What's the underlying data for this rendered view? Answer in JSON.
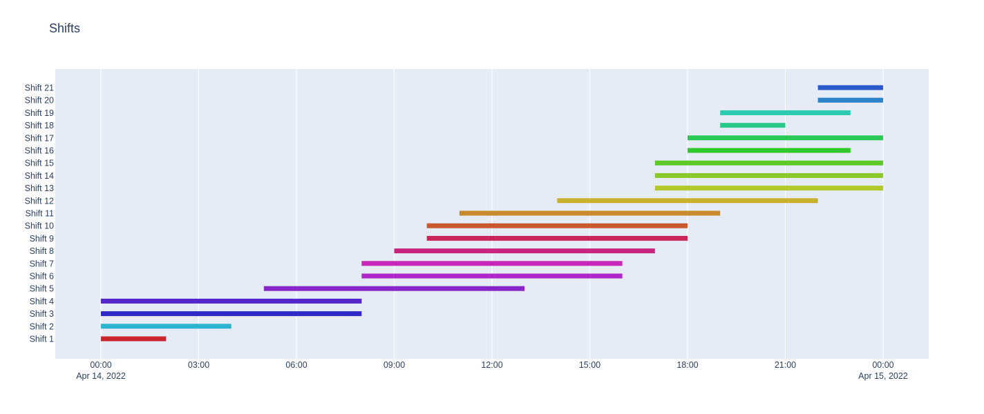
{
  "chart_data": {
    "type": "bar",
    "orientation": "horizontal-timeline",
    "title": "Shifts",
    "xlabel": "",
    "ylabel": "",
    "grid": true,
    "x_ticks": [
      {
        "time": "2022-04-14 00:00",
        "label": "00:00",
        "sublabel": "Apr 14, 2022"
      },
      {
        "time": "2022-04-14 03:00",
        "label": "03:00",
        "sublabel": ""
      },
      {
        "time": "2022-04-14 06:00",
        "label": "06:00",
        "sublabel": ""
      },
      {
        "time": "2022-04-14 09:00",
        "label": "09:00",
        "sublabel": ""
      },
      {
        "time": "2022-04-14 12:00",
        "label": "12:00",
        "sublabel": ""
      },
      {
        "time": "2022-04-14 15:00",
        "label": "15:00",
        "sublabel": ""
      },
      {
        "time": "2022-04-14 18:00",
        "label": "18:00",
        "sublabel": ""
      },
      {
        "time": "2022-04-14 21:00",
        "label": "21:00",
        "sublabel": ""
      },
      {
        "time": "2022-04-15 00:00",
        "label": "00:00",
        "sublabel": "Apr 15, 2022"
      }
    ],
    "xlim": [
      "2022-04-13 22:36",
      "2022-04-15 01:24"
    ],
    "series": [
      {
        "name": "Shift 1",
        "start": "2022-04-14 00:00",
        "end": "2022-04-14 02:00",
        "color": "#c8262b"
      },
      {
        "name": "Shift 2",
        "start": "2022-04-14 00:00",
        "end": "2022-04-14 04:00",
        "color": "#2bb3cf"
      },
      {
        "name": "Shift 3",
        "start": "2022-04-14 00:00",
        "end": "2022-04-14 08:00",
        "color": "#3029c8"
      },
      {
        "name": "Shift 4",
        "start": "2022-04-14 00:00",
        "end": "2022-04-14 08:00",
        "color": "#5527c9"
      },
      {
        "name": "Shift 5",
        "start": "2022-04-14 05:00",
        "end": "2022-04-14 13:00",
        "color": "#8726c8"
      },
      {
        "name": "Shift 6",
        "start": "2022-04-14 08:00",
        "end": "2022-04-14 16:00",
        "color": "#b027c9"
      },
      {
        "name": "Shift 7",
        "start": "2022-04-14 08:00",
        "end": "2022-04-14 16:00",
        "color": "#c927b7"
      },
      {
        "name": "Shift 8",
        "start": "2022-04-14 09:00",
        "end": "2022-04-14 17:00",
        "color": "#c8267e"
      },
      {
        "name": "Shift 9",
        "start": "2022-04-14 10:00",
        "end": "2022-04-14 18:00",
        "color": "#c8265a"
      },
      {
        "name": "Shift 10",
        "start": "2022-04-14 10:00",
        "end": "2022-04-14 18:00",
        "color": "#c9592c"
      },
      {
        "name": "Shift 11",
        "start": "2022-04-14 11:00",
        "end": "2022-04-14 19:00",
        "color": "#c88a2b"
      },
      {
        "name": "Shift 12",
        "start": "2022-04-14 14:00",
        "end": "2022-04-14 22:00",
        "color": "#c8b22b"
      },
      {
        "name": "Shift 13",
        "start": "2022-04-14 17:00",
        "end": "2022-04-15 00:00",
        "color": "#b3c82a"
      },
      {
        "name": "Shift 14",
        "start": "2022-04-14 17:00",
        "end": "2022-04-15 00:00",
        "color": "#8bc92b"
      },
      {
        "name": "Shift 15",
        "start": "2022-04-14 17:00",
        "end": "2022-04-15 00:00",
        "color": "#5ec82a"
      },
      {
        "name": "Shift 16",
        "start": "2022-04-14 18:00",
        "end": "2022-04-14 23:00",
        "color": "#2fc92b"
      },
      {
        "name": "Shift 17",
        "start": "2022-04-14 18:00",
        "end": "2022-04-15 00:00",
        "color": "#2ac955"
      },
      {
        "name": "Shift 18",
        "start": "2022-04-14 19:00",
        "end": "2022-04-14 21:00",
        "color": "#2bc98a"
      },
      {
        "name": "Shift 19",
        "start": "2022-04-14 19:00",
        "end": "2022-04-14 23:00",
        "color": "#2bc9ae"
      },
      {
        "name": "Shift 20",
        "start": "2022-04-14 22:00",
        "end": "2022-04-15 00:00",
        "color": "#2b84c9"
      },
      {
        "name": "Shift 21",
        "start": "2022-04-14 22:00",
        "end": "2022-04-15 00:00",
        "color": "#2b58c9"
      }
    ]
  },
  "colors": {
    "plot_background": "#e5ecf6",
    "gridline": "#ffffff",
    "text": "#2a3f5f"
  }
}
